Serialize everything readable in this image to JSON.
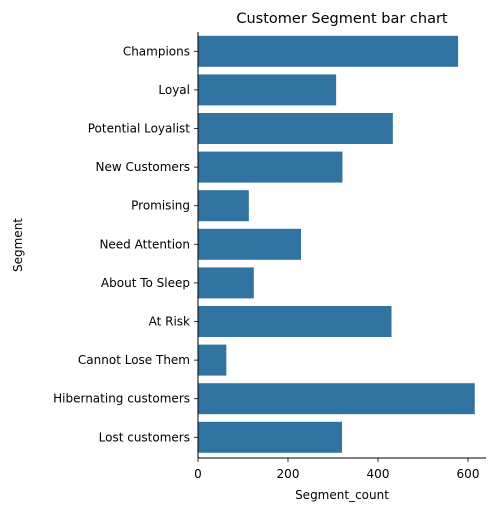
{
  "chart_data": {
    "type": "bar",
    "orientation": "horizontal",
    "title": "Customer Segment bar chart",
    "xlabel": "Segment_count",
    "ylabel": "Segment",
    "categories": [
      "Champions",
      "Loyal",
      "Potential Loyalist",
      "New Customers",
      "Promising",
      "Need Attention",
      "About To Sleep",
      "At Risk",
      "Cannot Lose Them",
      "Hibernating customers",
      "Lost customers"
    ],
    "values": [
      578,
      307,
      433,
      321,
      113,
      229,
      124,
      430,
      63,
      615,
      320
    ],
    "xlim": [
      0,
      640
    ],
    "xticks": [
      0,
      200,
      400,
      600
    ],
    "grid": false,
    "bar_color": "#3274a1"
  }
}
